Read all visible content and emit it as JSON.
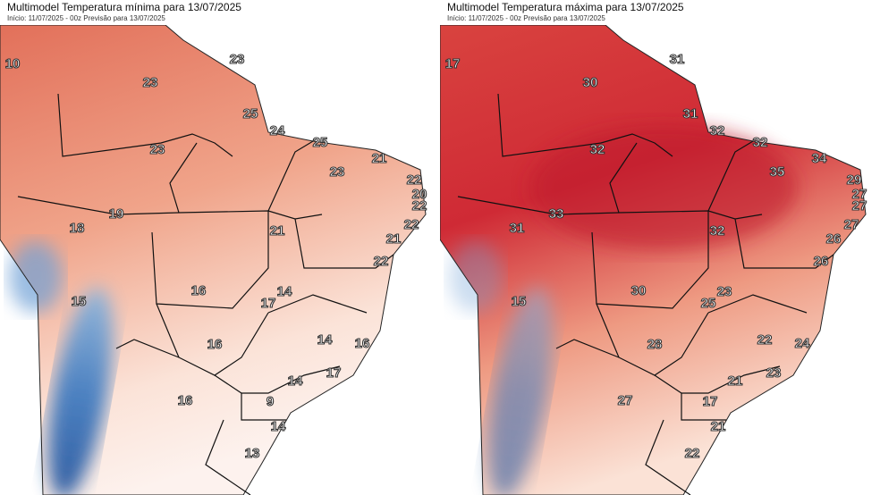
{
  "panels": [
    {
      "title": "Multimodel Temperatura mínima para 13/07/2025",
      "subtitle": "Início: 11/07/2025 - 00z  Previsão para 13/07/2025",
      "labels": [
        10,
        23,
        23,
        25,
        24,
        25,
        23,
        23,
        21,
        22,
        20,
        22,
        19,
        18,
        21,
        22,
        21,
        22,
        15,
        16,
        14,
        17,
        14,
        16,
        16,
        14,
        17,
        16,
        9,
        14,
        13
      ]
    },
    {
      "title": "Multimodel Temperatura máxima para 13/07/2025",
      "subtitle": "Início: 11/07/2025 - 00z  Previsão para 13/07/2025",
      "labels": [
        17,
        31,
        30,
        31,
        32,
        32,
        32,
        35,
        34,
        29,
        27,
        27,
        33,
        31,
        32,
        27,
        26,
        26,
        15,
        30,
        23,
        25,
        22,
        24,
        28,
        21,
        23,
        27,
        17,
        21,
        22
      ]
    }
  ]
}
